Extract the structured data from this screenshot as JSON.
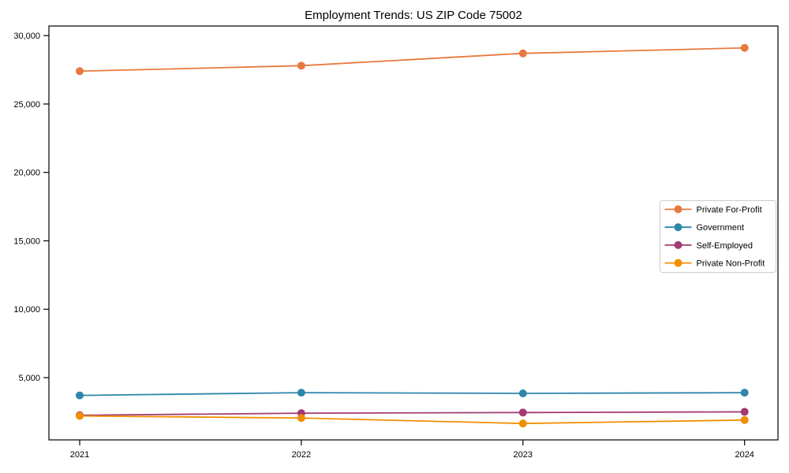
{
  "chart_data": {
    "type": "line",
    "title": "Employment Trends: US ZIP Code 75002",
    "categories": [
      "2021",
      "2022",
      "2023",
      "2024"
    ],
    "series": [
      {
        "name": "Private For-Profit",
        "color": "#E8793E",
        "values": [
          27400,
          27800,
          28700,
          29100
        ]
      },
      {
        "name": "Government",
        "color": "#2E86AB",
        "values": [
          3700,
          3900,
          3850,
          3900
        ]
      },
      {
        "name": "Self-Employed",
        "color": "#A23B72",
        "values": [
          2250,
          2400,
          2450,
          2500
        ]
      },
      {
        "name": "Private Non-Profit",
        "color": "#F18F01",
        "values": [
          2200,
          2050,
          1650,
          1900
        ]
      }
    ],
    "xlabel": "",
    "ylabel": "",
    "ylim": [
      450,
      30700
    ],
    "yticks": [
      5000,
      10000,
      15000,
      20000,
      25000,
      30000
    ],
    "ytick_labels": [
      "5,000",
      "10,000",
      "15,000",
      "20,000",
      "25,000",
      "30,000"
    ],
    "grid": false,
    "legend_position": "center right",
    "marker": "circle",
    "colors": {
      "axis": "#000000",
      "text": "#000000",
      "legend_border": "#cccccc",
      "background": "#ffffff"
    }
  }
}
